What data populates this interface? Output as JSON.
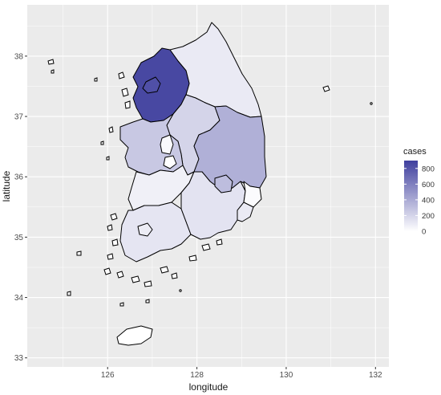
{
  "chart_data": {
    "type": "choropleth",
    "xlabel": "longitude",
    "ylabel": "latitude",
    "xlim": [
      124.2,
      132.3
    ],
    "ylim": [
      32.85,
      38.85
    ],
    "x_ticks": [
      126,
      128,
      130,
      132
    ],
    "y_ticks": [
      33,
      34,
      35,
      36,
      37,
      38
    ],
    "x_tick_labels": [
      "126",
      "128",
      "130",
      "132"
    ],
    "y_tick_labels": [
      "33",
      "34",
      "35",
      "36",
      "37",
      "38"
    ],
    "grid": true,
    "legend": {
      "title": "cases",
      "placement": "right",
      "breaks": [
        800,
        600,
        400,
        200,
        0
      ],
      "labels": [
        "800",
        "600",
        "400",
        "200",
        "0"
      ],
      "low_color": "#ffffff",
      "high_color": "#3f3f9e",
      "max": 900
    },
    "regions": [
      {
        "id": "gyeonggi",
        "value": 860
      },
      {
        "id": "seoul",
        "value": 820
      },
      {
        "id": "gangwon",
        "value": 100
      },
      {
        "id": "chungbuk",
        "value": 200
      },
      {
        "id": "gyeongbuk",
        "value": 370
      },
      {
        "id": "chungnam",
        "value": 260
      },
      {
        "id": "daejeon",
        "value": 0
      },
      {
        "id": "sejong",
        "value": 30
      },
      {
        "id": "jeonbuk",
        "value": 70
      },
      {
        "id": "gwangju",
        "value": 90
      },
      {
        "id": "jeonnam",
        "value": 120
      },
      {
        "id": "daegu",
        "value": 310
      },
      {
        "id": "gyeongnam",
        "value": 130
      },
      {
        "id": "ulsan",
        "value": 20
      },
      {
        "id": "busan",
        "value": 100
      },
      {
        "id": "jeju",
        "value": 0
      }
    ]
  },
  "colors": {
    "panel_background": "#ebebeb",
    "grid": "#ffffff",
    "outline": "#000000"
  }
}
